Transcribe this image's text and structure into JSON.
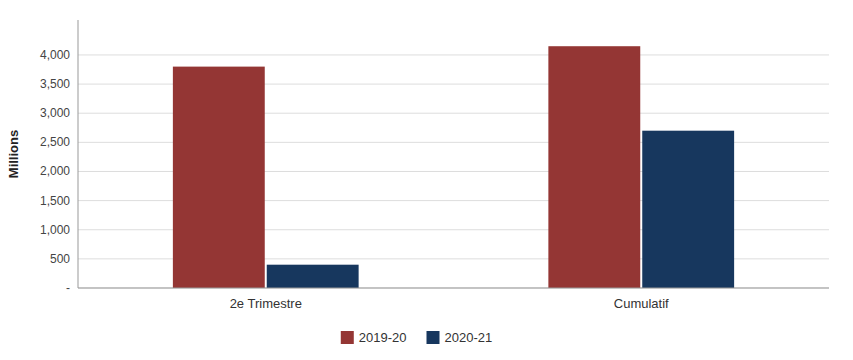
{
  "chart_data": {
    "type": "bar",
    "categories": [
      "2e Trimestre",
      "Cumulatif"
    ],
    "series": [
      {
        "name": "2019-20",
        "color": "#943634",
        "values": [
          3800,
          4150
        ]
      },
      {
        "name": "2020-21",
        "color": "#17375E",
        "values": [
          400,
          2700
        ]
      }
    ],
    "ylabel": "Millions",
    "ylim": [
      0,
      4600
    ],
    "yticks": [
      {
        "value": 0,
        "label": "-"
      },
      500,
      {
        "value": 1000,
        "label": "1,000"
      },
      {
        "value": 1500,
        "label": "1,500"
      },
      {
        "value": 2000,
        "label": "2,000"
      },
      {
        "value": 2500,
        "label": "2,500"
      },
      {
        "value": 3000,
        "label": "3,000"
      },
      {
        "value": 3500,
        "label": "3,500"
      },
      {
        "value": 4000,
        "label": "4,000"
      }
    ],
    "grid": true,
    "legend": "bottom"
  }
}
